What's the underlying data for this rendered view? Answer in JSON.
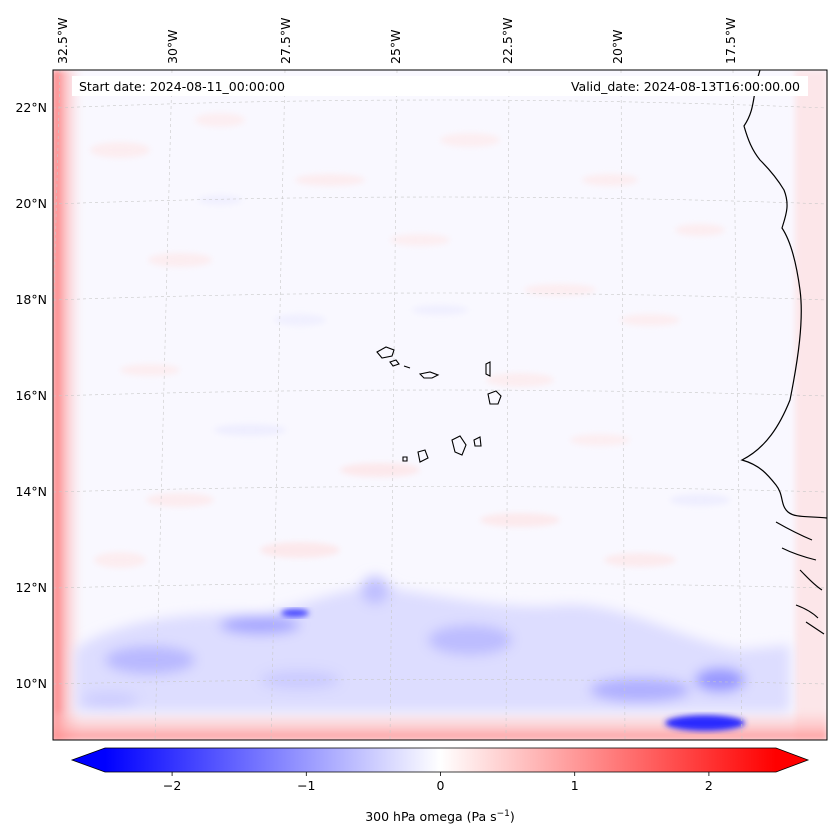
{
  "header": {
    "start_date": "Start date: 2024-08-11_00:00:00",
    "valid_date": "Valid_date: 2024-08-13T16:00:00.00"
  },
  "map": {
    "projection": "curved lat/lon grid",
    "top_longitude_labels": [
      "32.5°W",
      "30°W",
      "27.5°W",
      "25°W",
      "22.5°W",
      "20°W",
      "17.5°W"
    ],
    "left_latitude_labels": [
      "22°N",
      "20°N",
      "18°N",
      "16°N",
      "14°N",
      "12°N",
      "10°N"
    ],
    "gridlines": true,
    "features": [
      "African coastline",
      "Cape Verde islands"
    ]
  },
  "colorbar": {
    "label_prefix": "300 hPa omega (Pa s",
    "label_exp": "−1",
    "label_suffix": ")",
    "tick_labels": [
      "−2",
      "−1",
      "0",
      "1",
      "2"
    ],
    "tick_values": [
      -2,
      -1,
      0,
      1,
      2
    ],
    "range": [
      -2.5,
      2.5
    ],
    "extend": "both",
    "colormap": "bwr",
    "colors": {
      "negative": "#0000ff",
      "zero": "#ffffff",
      "positive": "#ff0000"
    }
  }
}
